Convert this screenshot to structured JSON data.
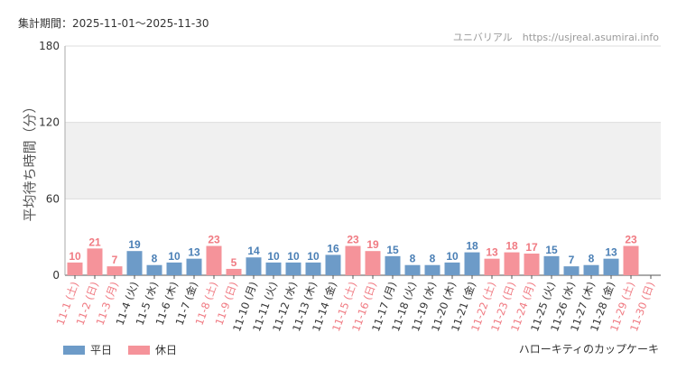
{
  "header": {
    "period": "集計期間：2025-11-01～2025-11-30",
    "source": "ユニバリアル　https://usjreal.asumirai.info"
  },
  "footer": {
    "attraction": "ハローキティのカップケーキ"
  },
  "colors": {
    "weekday": "#6d9bc8",
    "holiday": "#f5939a",
    "weekday_text": "#4a7fb5",
    "holiday_text": "#f07a82",
    "label_weekday": "#333333",
    "label_holiday": "#f07a82",
    "band": "#f0f0f0"
  },
  "chart_data": {
    "type": "bar",
    "ylabel": "平均待ち時間（分）",
    "ylim": [
      0,
      180
    ],
    "yticks": [
      0,
      60,
      120,
      180
    ],
    "categories": [
      "11-1 (土)",
      "11-2 (日)",
      "11-3 (月)",
      "11-4 (火)",
      "11-5 (水)",
      "11-6 (木)",
      "11-7 (金)",
      "11-8 (土)",
      "11-9 (日)",
      "11-10 (月)",
      "11-11 (火)",
      "11-12 (水)",
      "11-13 (木)",
      "11-14 (金)",
      "11-15 (土)",
      "11-16 (日)",
      "11-17 (月)",
      "11-18 (火)",
      "11-19 (水)",
      "11-20 (木)",
      "11-21 (金)",
      "11-22 (土)",
      "11-23 (日)",
      "11-24 (月)",
      "11-25 (火)",
      "11-26 (水)",
      "11-27 (木)",
      "11-28 (金)",
      "11-29 (土)",
      "11-30 (日)"
    ],
    "values": [
      10,
      21,
      7,
      19,
      8,
      10,
      13,
      23,
      5,
      14,
      10,
      10,
      10,
      16,
      23,
      19,
      15,
      8,
      8,
      10,
      18,
      13,
      18,
      17,
      15,
      7,
      8,
      13,
      23,
      null
    ],
    "day_type": [
      "holiday",
      "holiday",
      "holiday",
      "weekday",
      "weekday",
      "weekday",
      "weekday",
      "holiday",
      "holiday",
      "weekday",
      "weekday",
      "weekday",
      "weekday",
      "weekday",
      "holiday",
      "holiday",
      "weekday",
      "weekday",
      "weekday",
      "weekday",
      "weekday",
      "holiday",
      "holiday",
      "holiday",
      "weekday",
      "weekday",
      "weekday",
      "weekday",
      "holiday",
      "holiday"
    ],
    "legend": [
      {
        "name": "平日",
        "type": "weekday"
      },
      {
        "name": "休日",
        "type": "holiday"
      }
    ],
    "legend_position": "bottom-left",
    "grid": true
  }
}
